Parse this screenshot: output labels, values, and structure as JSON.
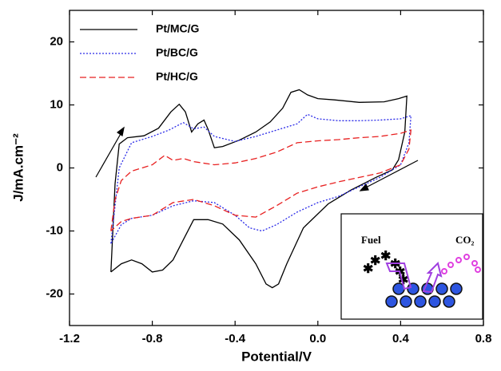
{
  "chart_data": {
    "type": "line",
    "x_label": "Potential/V",
    "y_label": "J/mA.cm⁻²",
    "xlim": [
      -1.2,
      0.8
    ],
    "ylim": [
      -25,
      25
    ],
    "xticks": [
      -1.2,
      -0.8,
      -0.4,
      {
        "value": 0,
        "label": "0.0"
      },
      0.4,
      0.8
    ],
    "yticks": [
      -20,
      -10,
      0,
      10,
      20
    ],
    "grid": false,
    "legend": "upper-left",
    "inset_labels": [
      "Fuel",
      "CO₂"
    ],
    "series": [
      {
        "name": "Pt/MC/G",
        "color": "#000000",
        "line_style": "solid",
        "x": [
          -1.0,
          -0.98,
          -0.96,
          -0.92,
          -0.84,
          -0.77,
          -0.71,
          -0.67,
          -0.64,
          -0.61,
          -0.58,
          -0.55,
          -0.53,
          -0.5,
          -0.46,
          -0.38,
          -0.3,
          -0.23,
          -0.17,
          -0.13,
          -0.09,
          -0.05,
          0.0,
          0.08,
          0.2,
          0.32,
          0.39,
          0.43,
          0.42,
          0.39,
          0.36,
          0.28,
          0.16,
          0.05,
          -0.07,
          -0.15,
          -0.19,
          -0.22,
          -0.25,
          -0.3,
          -0.38,
          -0.46,
          -0.53,
          -0.6,
          -0.65,
          -0.7,
          -0.75,
          -0.8,
          -0.85,
          -0.9,
          -0.95,
          -1.0
        ],
        "values": [
          -16.5,
          -2.5,
          3.8,
          4.8,
          5.1,
          6.3,
          8.9,
          10.1,
          8.9,
          5.7,
          7.0,
          7.6,
          6.1,
          3.2,
          3.4,
          4.4,
          5.7,
          7.3,
          9.5,
          12.0,
          12.4,
          11.6,
          11.0,
          10.8,
          10.4,
          10.5,
          11.0,
          11.4,
          5.7,
          1.3,
          -0.3,
          -1.5,
          -3.5,
          -5.7,
          -9.5,
          -15.2,
          -18.4,
          -19.0,
          -18.4,
          -15.2,
          -11.4,
          -8.9,
          -8.2,
          -8.2,
          -11.4,
          -14.6,
          -16.2,
          -16.5,
          -15.2,
          -14.6,
          -15.2,
          -16.5
        ]
      },
      {
        "name": "Pt/BC/G",
        "color": "#2a2ae8",
        "line_style": "dotted",
        "x": [
          -1.0,
          -0.96,
          -0.9,
          -0.8,
          -0.72,
          -0.65,
          -0.6,
          -0.55,
          -0.5,
          -0.4,
          -0.3,
          -0.2,
          -0.1,
          -0.05,
          0.0,
          0.1,
          0.2,
          0.3,
          0.4,
          0.45,
          0.44,
          0.4,
          0.3,
          0.2,
          0.1,
          0.0,
          -0.1,
          -0.2,
          -0.27,
          -0.33,
          -0.4,
          -0.5,
          -0.6,
          -0.7,
          -0.8,
          -0.9,
          -0.95,
          -1.0
        ],
        "values": [
          -12,
          0,
          4,
          5,
          6,
          7.2,
          6.2,
          6.5,
          5,
          4.2,
          5.0,
          6.0,
          7.0,
          8.5,
          7.8,
          7.5,
          7.5,
          7.6,
          7.8,
          8.3,
          4,
          0.5,
          -1.5,
          -3,
          -4.5,
          -5.5,
          -7,
          -9,
          -10,
          -9.5,
          -7.5,
          -5.5,
          -5.2,
          -6,
          -7.5,
          -8,
          -9,
          -12
        ]
      },
      {
        "name": "Pt/HC/G",
        "color": "#e82020",
        "line_style": "dashed",
        "x": [
          -1.0,
          -0.98,
          -0.95,
          -0.9,
          -0.8,
          -0.74,
          -0.7,
          -0.65,
          -0.6,
          -0.5,
          -0.4,
          -0.3,
          -0.2,
          -0.1,
          0.0,
          0.1,
          0.2,
          0.3,
          0.4,
          0.45,
          0.44,
          0.4,
          0.3,
          0.2,
          0.1,
          0.0,
          -0.1,
          -0.2,
          -0.3,
          -0.4,
          -0.5,
          -0.6,
          -0.7,
          -0.8,
          -0.9,
          -0.95,
          -1.0
        ],
        "values": [
          -10,
          -5,
          -2,
          -0.5,
          0.5,
          2,
          1.2,
          1.5,
          1.0,
          0.5,
          0.8,
          1.5,
          2.5,
          4,
          4.3,
          4.5,
          4.8,
          5.0,
          5.5,
          6,
          3,
          0.5,
          -0.8,
          -1.5,
          -2.2,
          -3,
          -4,
          -6,
          -7.8,
          -7.5,
          -6,
          -5,
          -5.5,
          -7.5,
          -8,
          -8.5,
          -10
        ]
      }
    ]
  }
}
